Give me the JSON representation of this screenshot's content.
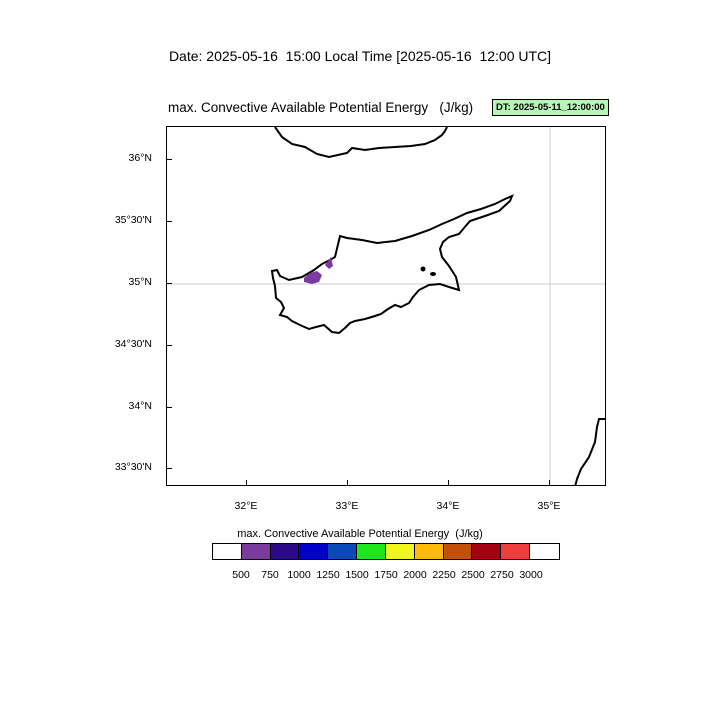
{
  "header": {
    "date_line": "Date: 2025-05-16  15:00 Local Time [2025-05-16  12:00 UTC]",
    "map_title": "max. Convective Available Potential Energy   (J/kg)",
    "dt_badge": "DT: 2025-05-11_12:00:00",
    "dt_badge_color": "#b8f5b8"
  },
  "map": {
    "lat_labels": [
      "36°N",
      "35°30'N",
      "35°N",
      "34°30'N",
      "34°N",
      "33°30'N"
    ],
    "lon_labels": [
      "32°E",
      "33°E",
      "34°E",
      "35°E"
    ],
    "lat_range": [
      33.25,
      36.3
    ],
    "lon_range": [
      31.2,
      35.55
    ],
    "gridlines": "35°N, 35°E",
    "cape_patch_color": "#7b3a9e"
  },
  "colorbar": {
    "title": "max. Convective Available Potential Energy  (J/kg)",
    "levels": [
      "500",
      "750",
      "1000",
      "1250",
      "1500",
      "1750",
      "2000",
      "2250",
      "2500",
      "2750",
      "3000"
    ],
    "colors": [
      "#ffffff",
      "#7b3a9e",
      "#2a0a86",
      "#0000c8",
      "#0a4ab8",
      "#1ee61e",
      "#f0f51e",
      "#ffbb0a",
      "#c2500a",
      "#a5000f",
      "#f03c3c",
      "#ffffff"
    ]
  }
}
